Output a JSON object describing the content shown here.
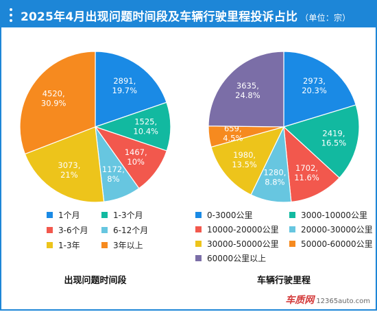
{
  "header": {
    "title": "2025年4月出现问题时间段及车辆行驶里程投诉占比",
    "unit": "（单位：宗）"
  },
  "watermark": {
    "brand": "车质网",
    "site": "12365auto.com"
  },
  "chart_data": [
    {
      "type": "pie",
      "label": "出现问题时间段",
      "slices": [
        {
          "name": "1个月",
          "value": 2891,
          "percent": "19.7%",
          "color": "#1a8ae5"
        },
        {
          "name": "1-3个月",
          "value": 1525,
          "percent": "10.4%",
          "color": "#12b9a0"
        },
        {
          "name": "3-6个月",
          "value": 1467,
          "percent": "10%",
          "color": "#f2584d"
        },
        {
          "name": "6-12个月",
          "value": 1172,
          "percent": "8%",
          "color": "#67c6e0"
        },
        {
          "name": "1-3年",
          "value": 3073,
          "percent": "21%",
          "color": "#edc41b"
        },
        {
          "name": "3年以上",
          "value": 4520,
          "percent": "30.9%",
          "color": "#f68a1f"
        }
      ]
    },
    {
      "type": "pie",
      "label": "车辆行驶里程",
      "slices": [
        {
          "name": "0-3000公里",
          "value": 2973,
          "percent": "20.3%",
          "color": "#1a8ae5"
        },
        {
          "name": "3000-10000公里",
          "value": 2419,
          "percent": "16.5%",
          "color": "#12b9a0"
        },
        {
          "name": "10000-20000公里",
          "value": 1702,
          "percent": "11.6%",
          "color": "#f2584d"
        },
        {
          "name": "20000-30000公里",
          "value": 1280,
          "percent": "8.8%",
          "color": "#67c6e0"
        },
        {
          "name": "30000-50000公里",
          "value": 1980,
          "percent": "13.5%",
          "color": "#edc41b"
        },
        {
          "name": "50000-60000公里",
          "value": 659,
          "percent": "4.5%",
          "color": "#f68a1f"
        },
        {
          "name": "60000公里以上",
          "value": 3635,
          "percent": "24.8%",
          "color": "#7b6ea7"
        }
      ]
    }
  ]
}
